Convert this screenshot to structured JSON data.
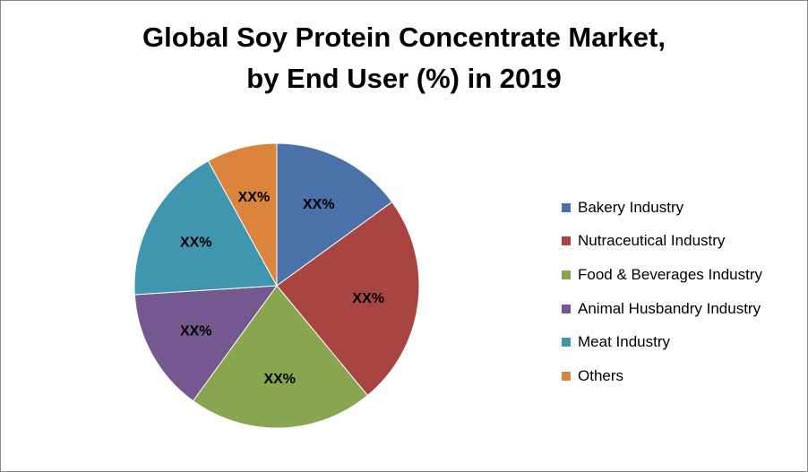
{
  "chart_data": {
    "type": "pie",
    "title": [
      "Global Soy Protein Concentrate Market,",
      "by End User (%) in 2019"
    ],
    "legend_position": "right",
    "slices": [
      {
        "name": "Bakery Industry",
        "value": 15,
        "label": "XX%",
        "color": "#4A72A8"
      },
      {
        "name": "Nutraceutical Industry",
        "value": 24,
        "label": "XX%",
        "color": "#A84543"
      },
      {
        "name": "Food & Beverages Industry",
        "value": 21,
        "label": "XX%",
        "color": "#88A54F"
      },
      {
        "name": "Animal Husbandry Industry",
        "value": 14,
        "label": "XX%",
        "color": "#73598F"
      },
      {
        "name": "Meat Industry",
        "value": 18,
        "label": "XX%",
        "color": "#4096AE"
      },
      {
        "name": "Others",
        "value": 8,
        "label": "XX%",
        "color": "#DB843D"
      }
    ]
  }
}
